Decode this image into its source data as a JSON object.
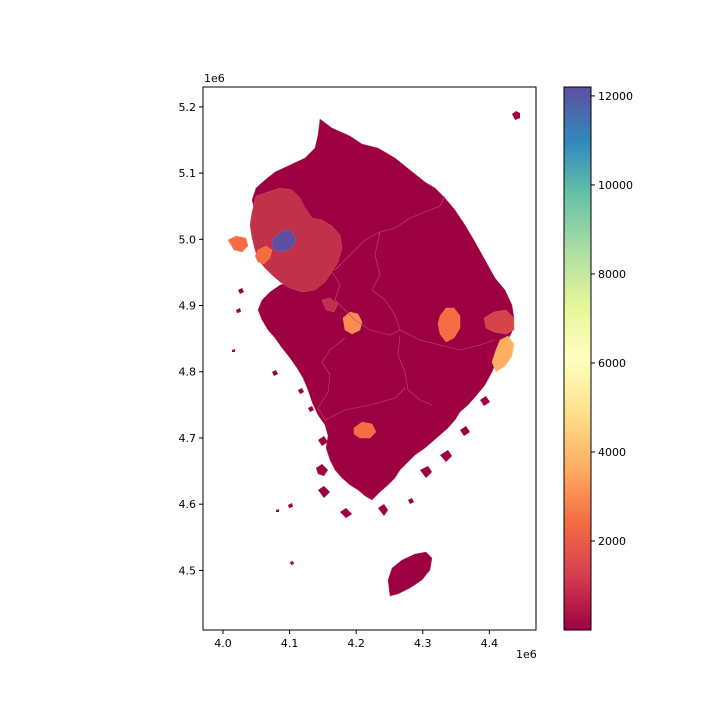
{
  "chart_data": {
    "type": "choropleth",
    "xaxis": {
      "ticks": [
        4.0,
        4.1,
        4.2,
        4.3,
        4.4
      ],
      "tick_labels": [
        "4.0",
        "4.1",
        "4.2",
        "4.3",
        "4.4"
      ],
      "offset_label": "1e6",
      "range": [
        3.97,
        4.47
      ]
    },
    "yaxis": {
      "ticks": [
        4.5,
        4.6,
        4.7,
        4.8,
        4.9,
        5.0,
        5.1,
        5.2
      ],
      "tick_labels": [
        "4.5",
        "4.6",
        "4.7",
        "4.8",
        "4.9",
        "5.0",
        "5.1",
        "5.2"
      ],
      "offset_label": "1e6",
      "range": [
        4.41,
        5.23
      ]
    },
    "colorbar": {
      "colormap": "Spectral",
      "range": [
        0,
        12200
      ],
      "ticks": [
        2000,
        4000,
        6000,
        8000,
        10000,
        12000
      ],
      "tick_labels": [
        "2000",
        "4000",
        "6000",
        "8000",
        "10000",
        "12000"
      ]
    },
    "regions": [
      {
        "value": 12200,
        "color": "#5e4fa2"
      },
      {
        "value": 2000,
        "color": "#f46d43"
      },
      {
        "value": 3300,
        "color": "#fdae61"
      },
      {
        "value": 2500,
        "color": "#f88d52"
      },
      {
        "value": 1200,
        "color": "#c2314a"
      },
      {
        "value": 100,
        "color": "#9e0142"
      }
    ],
    "grid": false
  }
}
